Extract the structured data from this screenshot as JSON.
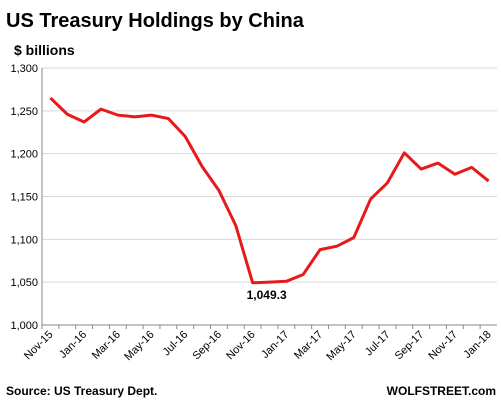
{
  "chart_data": {
    "type": "line",
    "title": "US Treasury Holdings by China",
    "subtitle": "$ billions",
    "categories": [
      "Nov-15",
      null,
      "Jan-16",
      null,
      "Mar-16",
      null,
      "May-16",
      null,
      "Jul-16",
      null,
      "Sep-16",
      null,
      "Nov-16",
      null,
      "Jan-17",
      null,
      "Mar-17",
      null,
      "May-17",
      null,
      "Jul-17",
      null,
      "Sep-17",
      null,
      "Nov-17",
      null,
      "Jan-18"
    ],
    "series": [
      {
        "name": "US Treasury Holdings by China",
        "color": "#e8191b",
        "values": [
          1265,
          1246,
          1237,
          1252,
          1245,
          1243,
          1245,
          1241,
          1220,
          1185,
          1157,
          1116,
          1049.3,
          1050,
          1051,
          1059,
          1088,
          1092,
          1102,
          1147,
          1166,
          1201,
          1182,
          1189,
          1176,
          1184,
          1168
        ],
        "value_labels": [
          null,
          null,
          null,
          null,
          null,
          null,
          null,
          null,
          null,
          null,
          null,
          null,
          "1,049.3",
          null,
          null,
          null,
          null,
          null,
          null,
          null,
          null,
          null,
          null,
          null,
          null,
          null,
          null
        ]
      }
    ],
    "ylim": [
      1000,
      1300
    ],
    "yticks": [
      {
        "value": 1000,
        "label": "1,000"
      },
      {
        "value": 1050,
        "label": "1,050"
      },
      {
        "value": 1100,
        "label": "1,100"
      },
      {
        "value": 1150,
        "label": "1,150"
      },
      {
        "value": 1200,
        "label": "1,200"
      },
      {
        "value": 1250,
        "label": "1,250"
      },
      {
        "value": 1300,
        "label": "1,300"
      }
    ],
    "grid": true,
    "source": "Source: US Treasury Dept.",
    "credit": "WOLFSTREET.com"
  }
}
